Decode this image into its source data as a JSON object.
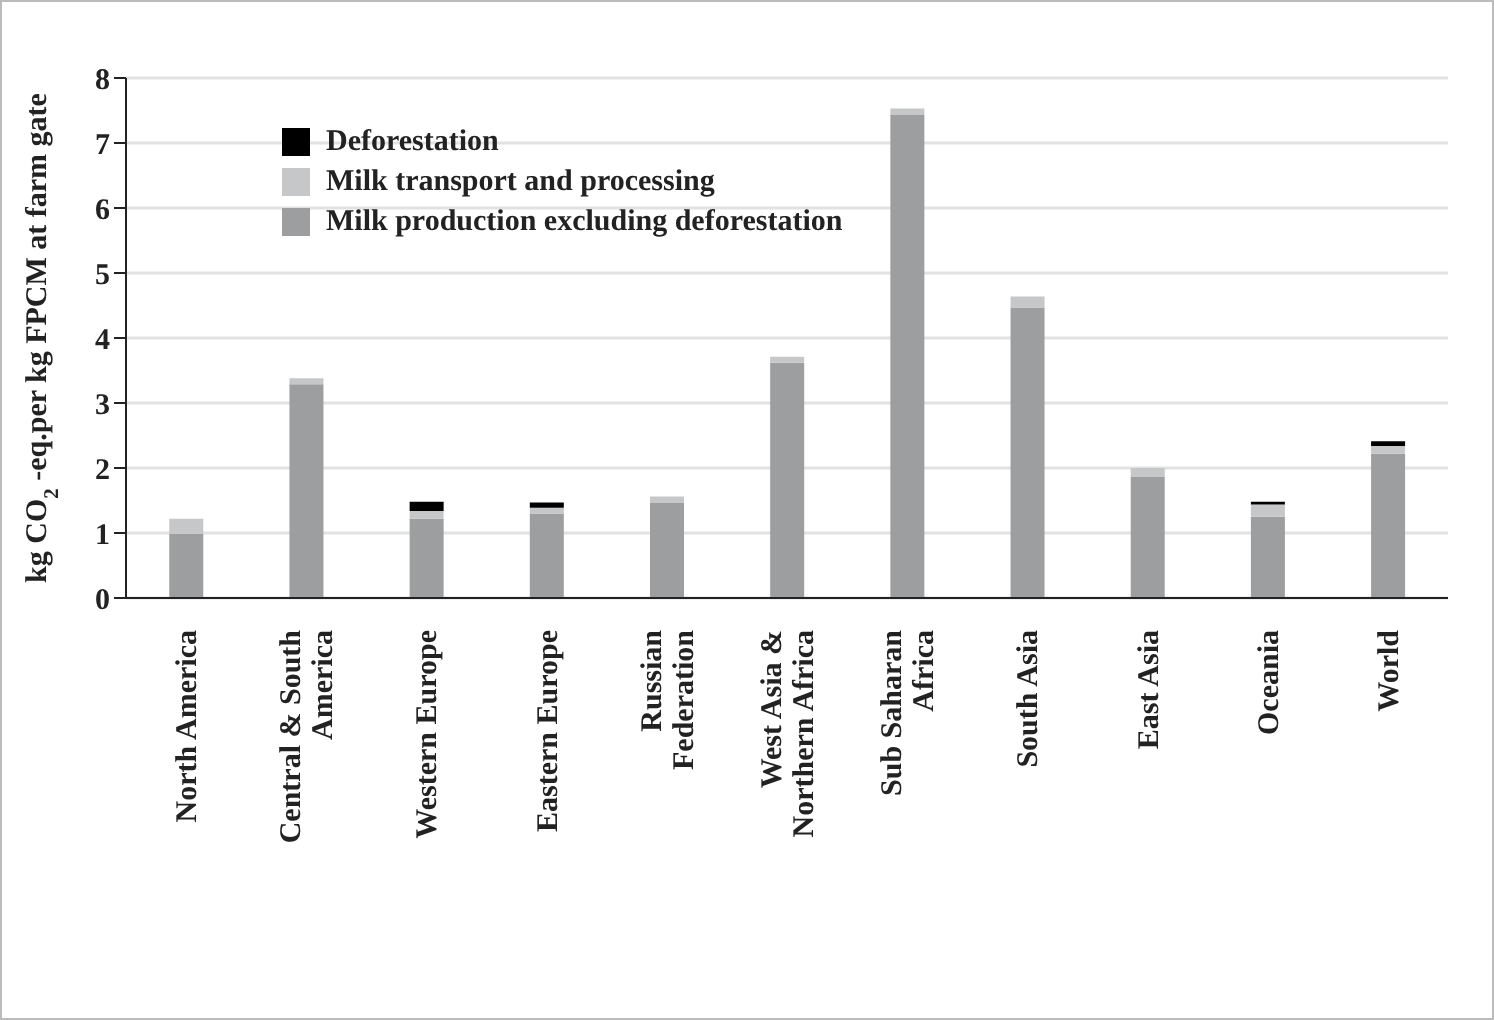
{
  "chart_data": {
    "type": "bar",
    "stacked": true,
    "ylabel": "kg CO$_{2}$ -eq.per kg FPCM at farm gate",
    "categories": [
      "North America",
      "Central & South America",
      "Western Europe",
      "Eastern Europe",
      "Russian Federation",
      "West Asia & Northern Africa",
      "Sub Saharan Africa",
      "South Asia",
      "East Asia",
      "Oceania",
      "World"
    ],
    "series": [
      {
        "name": "Milk production excluding deforestation",
        "color": "#9d9ea0",
        "values": [
          0.99,
          3.29,
          1.22,
          1.3,
          1.46,
          3.62,
          7.43,
          4.47,
          1.86,
          1.25,
          2.22
        ]
      },
      {
        "name": "Milk transport and processing",
        "color": "#c6c7c8",
        "values": [
          0.23,
          0.09,
          0.12,
          0.09,
          0.1,
          0.09,
          0.1,
          0.17,
          0.14,
          0.19,
          0.12
        ]
      },
      {
        "name": "Deforestation",
        "color": "#000000",
        "values": [
          null,
          null,
          0.14,
          0.08,
          null,
          null,
          null,
          null,
          null,
          0.04,
          0.07
        ]
      }
    ],
    "ylim": [
      0,
      8
    ],
    "yticks": [
      0,
      1,
      2,
      3,
      4,
      5,
      6,
      7,
      8
    ],
    "grid": "y",
    "legend": "top left"
  }
}
